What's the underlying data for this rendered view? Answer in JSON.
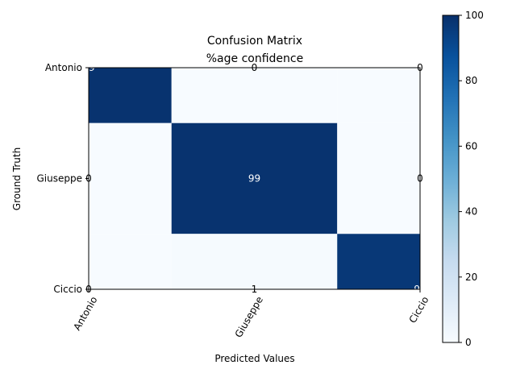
{
  "chart_data": {
    "type": "heatmap",
    "title": "Confusion Matrix",
    "subtitle": "%age confidence",
    "xlabel": "Predicted Values",
    "ylabel": "Ground Truth",
    "x_categories": [
      "Antonio",
      "Giuseppe",
      "Ciccio"
    ],
    "y_categories": [
      "Antonio",
      "Giuseppe",
      "Ciccio"
    ],
    "values": [
      [
        99,
        0,
        0
      ],
      [
        0,
        99,
        0
      ],
      [
        0,
        1,
        97
      ]
    ],
    "colormap": "Blues",
    "colorbar": {
      "min": 0,
      "max": 100,
      "ticks": [
        0,
        20,
        40,
        60,
        80,
        100
      ]
    },
    "grid": false
  }
}
